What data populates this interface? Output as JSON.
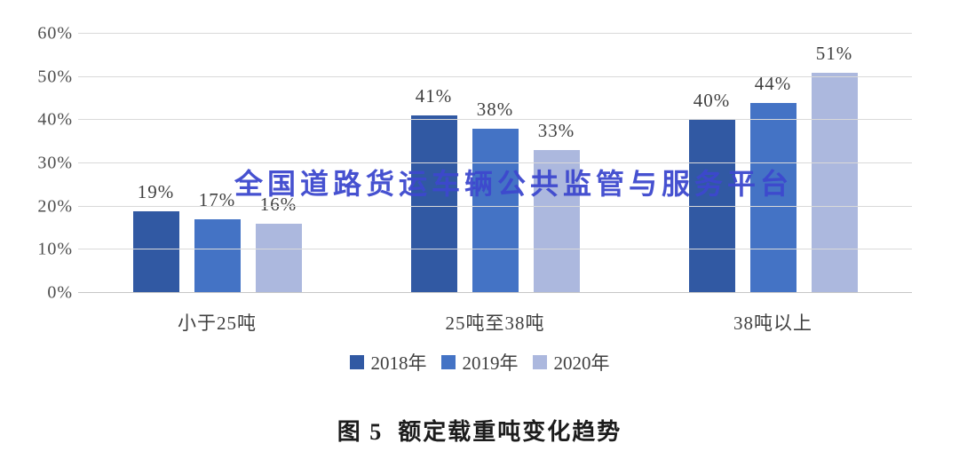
{
  "watermark": {
    "text": "全国道路货运车辆公共监管与服务平台",
    "color": "#3d48ce"
  },
  "caption": "图 5  额定载重吨变化趋势",
  "chart_data": {
    "type": "bar",
    "title": "图 5  额定载重吨变化趋势",
    "categories": [
      "小于25吨",
      "25吨至38吨",
      "38吨以上"
    ],
    "series": [
      {
        "name": "2018年",
        "color": "#3159a3",
        "values": [
          19,
          41,
          40
        ]
      },
      {
        "name": "2019年",
        "color": "#4473c5",
        "values": [
          17,
          38,
          44
        ]
      },
      {
        "name": "2020年",
        "color": "#acb8de",
        "values": [
          16,
          33,
          51
        ]
      }
    ],
    "value_suffix": "%",
    "ylim": [
      0,
      60
    ],
    "yticks": [
      "0%",
      "10%",
      "20%",
      "30%",
      "40%",
      "50%",
      "60%"
    ],
    "xlabel": "",
    "ylabel": "",
    "grid": true,
    "legend_position": "bottom"
  }
}
